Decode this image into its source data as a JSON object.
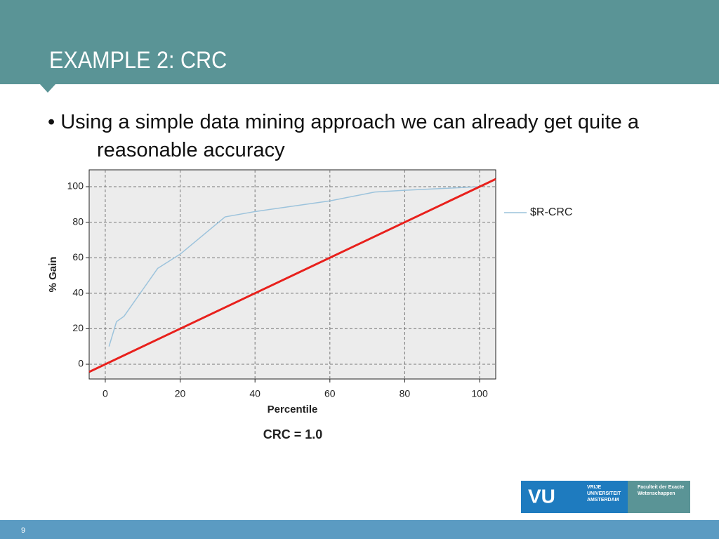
{
  "slide": {
    "title": "EXAMPLE 2: CRC",
    "bullet": "• Using a simple data mining approach we can already get quite a reasonable accuracy",
    "caption": "CRC = 1.0",
    "page_number": "9",
    "logo": {
      "mark": "VU",
      "university": "VRIJE UNIVERSITEIT AMSTERDAM",
      "faculty": "Faculteit der Exacte Wetenschappen"
    }
  },
  "chart_data": {
    "type": "line",
    "x_label": "Percentile",
    "y_label": "% Gain",
    "xlim": [
      -4.3,
      104.3
    ],
    "ylim": [
      -8.3,
      109.5
    ],
    "xticks": [
      0,
      20,
      40,
      60,
      80,
      100
    ],
    "yticks": [
      0,
      20,
      40,
      60,
      80,
      100
    ],
    "grid": true,
    "series": [
      {
        "name": "$R-CRC",
        "color": "#9cc3dc",
        "x": [
          1,
          3,
          5,
          7,
          10,
          14,
          20,
          32,
          40,
          60,
          72,
          80,
          100
        ],
        "values": [
          10,
          24,
          27,
          33,
          42,
          54,
          62,
          83,
          86,
          92,
          97,
          98,
          100
        ]
      },
      {
        "color": "#e8201c",
        "x": [
          -4.3,
          104.3
        ],
        "values": [
          -4.3,
          104.3
        ]
      }
    ]
  }
}
